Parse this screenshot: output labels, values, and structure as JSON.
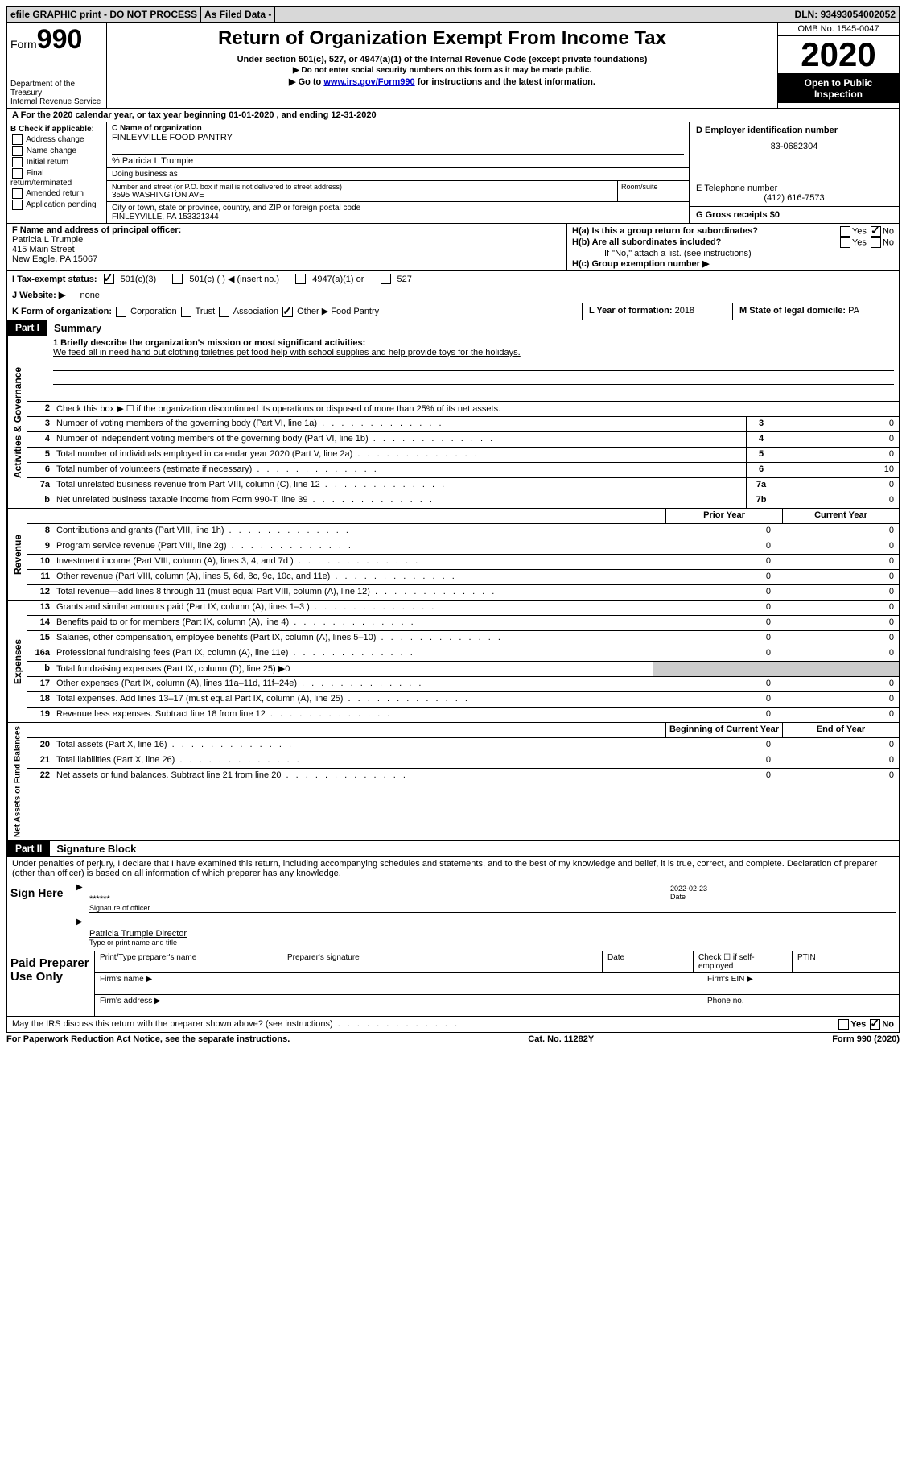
{
  "topbar": {
    "efile": "efile GRAPHIC print - DO NOT PROCESS",
    "asfiled": "As Filed Data -",
    "dln_label": "DLN:",
    "dln": "93493054002052"
  },
  "header": {
    "form_prefix": "Form",
    "form_num": "990",
    "dept1": "Department of the Treasury",
    "dept2": "Internal Revenue Service",
    "title": "Return of Organization Exempt From Income Tax",
    "sub1": "Under section 501(c), 527, or 4947(a)(1) of the Internal Revenue Code (except private foundations)",
    "sub2": "▶ Do not enter social security numbers on this form as it may be made public.",
    "sub3_pre": "▶ Go to ",
    "sub3_link": "www.irs.gov/Form990",
    "sub3_post": " for instructions and the latest information.",
    "omb": "OMB No. 1545-0047",
    "year": "2020",
    "open": "Open to Public Inspection"
  },
  "rowA": "A  For the 2020 calendar year, or tax year beginning 01-01-2020   , and ending 12-31-2020",
  "sectionB": {
    "label": "B Check if applicable:",
    "items": [
      "Address change",
      "Name change",
      "Initial return",
      "Final return/terminated",
      "Amended return",
      "Application pending"
    ]
  },
  "sectionC": {
    "name_label": "C Name of organization",
    "name": "FINLEYVILLE FOOD PANTRY",
    "care_of": "% Patricia L Trumpie",
    "dba_label": "Doing business as",
    "addr_label": "Number and street (or P.O. box if mail is not delivered to street address)",
    "addr": "3595 WASHINGTON AVE",
    "room_label": "Room/suite",
    "city_label": "City or town, state or province, country, and ZIP or foreign postal code",
    "city": "FINLEYVILLE, PA  153321344"
  },
  "sectionD": {
    "ein_label": "D Employer identification number",
    "ein": "83-0682304",
    "phone_label": "E Telephone number",
    "phone": "(412) 616-7573",
    "gross_label": "G Gross receipts $",
    "gross": "0"
  },
  "sectionF": {
    "label": "F  Name and address of principal officer:",
    "line1": "Patricia L Trumpie",
    "line2": "415 Main Street",
    "line3": "New Eagle, PA  15067"
  },
  "sectionH": {
    "ha": "H(a) Is this a group return for subordinates?",
    "hb": "H(b) Are all subordinates included?",
    "hb_note": "If \"No,\" attach a list. (see instructions)",
    "hc": "H(c) Group exemption number ▶",
    "yes": "Yes",
    "no": "No"
  },
  "sectionI": {
    "label": "I  Tax-exempt status:",
    "opts": [
      "501(c)(3)",
      "501(c) (  ) ◀ (insert no.)",
      "4947(a)(1) or",
      "527"
    ]
  },
  "sectionJ": {
    "label": "J  Website: ▶",
    "val": "none"
  },
  "sectionK": {
    "label": "K Form of organization:",
    "opts": [
      "Corporation",
      "Trust",
      "Association",
      "Other ▶"
    ],
    "other": "Food Pantry"
  },
  "sectionL": {
    "label": "L Year of formation:",
    "val": "2018"
  },
  "sectionM": {
    "label": "M State of legal domicile:",
    "val": "PA"
  },
  "part1": {
    "header": "Part I",
    "title": "Summary",
    "line1_label": "1 Briefly describe the organization's mission or most significant activities:",
    "line1_text": "We feed all in need hand out clothing toiletries pet food help with school supplies and help provide toys for the holidays.",
    "line2": "Check this box ▶ ☐ if the organization discontinued its operations or disposed of more than 25% of its net assets.",
    "governance_label": "Activities & Governance",
    "revenue_label": "Revenue",
    "expenses_label": "Expenses",
    "netassets_label": "Net Assets or Fund Balances",
    "prior_year": "Prior Year",
    "current_year": "Current Year",
    "begin_year": "Beginning of Current Year",
    "end_year": "End of Year",
    "gov_lines": [
      {
        "n": "3",
        "d": "Number of voting members of the governing body (Part VI, line 1a)",
        "box": "3",
        "v": "0"
      },
      {
        "n": "4",
        "d": "Number of independent voting members of the governing body (Part VI, line 1b)",
        "box": "4",
        "v": "0"
      },
      {
        "n": "5",
        "d": "Total number of individuals employed in calendar year 2020 (Part V, line 2a)",
        "box": "5",
        "v": "0"
      },
      {
        "n": "6",
        "d": "Total number of volunteers (estimate if necessary)",
        "box": "6",
        "v": "10"
      },
      {
        "n": "7a",
        "d": "Total unrelated business revenue from Part VIII, column (C), line 12",
        "box": "7a",
        "v": "0"
      },
      {
        "n": "b",
        "d": "Net unrelated business taxable income from Form 990-T, line 39",
        "box": "7b",
        "v": "0"
      }
    ],
    "rev_lines": [
      {
        "n": "8",
        "d": "Contributions and grants (Part VIII, line 1h)",
        "p": "0",
        "c": "0"
      },
      {
        "n": "9",
        "d": "Program service revenue (Part VIII, line 2g)",
        "p": "0",
        "c": "0"
      },
      {
        "n": "10",
        "d": "Investment income (Part VIII, column (A), lines 3, 4, and 7d )",
        "p": "0",
        "c": "0"
      },
      {
        "n": "11",
        "d": "Other revenue (Part VIII, column (A), lines 5, 6d, 8c, 9c, 10c, and 11e)",
        "p": "0",
        "c": "0"
      },
      {
        "n": "12",
        "d": "Total revenue—add lines 8 through 11 (must equal Part VIII, column (A), line 12)",
        "p": "0",
        "c": "0"
      }
    ],
    "exp_lines": [
      {
        "n": "13",
        "d": "Grants and similar amounts paid (Part IX, column (A), lines 1–3 )",
        "p": "0",
        "c": "0"
      },
      {
        "n": "14",
        "d": "Benefits paid to or for members (Part IX, column (A), line 4)",
        "p": "0",
        "c": "0"
      },
      {
        "n": "15",
        "d": "Salaries, other compensation, employee benefits (Part IX, column (A), lines 5–10)",
        "p": "0",
        "c": "0"
      },
      {
        "n": "16a",
        "d": "Professional fundraising fees (Part IX, column (A), line 11e)",
        "p": "0",
        "c": "0"
      },
      {
        "n": "b",
        "d": "Total fundraising expenses (Part IX, column (D), line 25) ▶0",
        "p": "",
        "c": "",
        "shade": true
      },
      {
        "n": "17",
        "d": "Other expenses (Part IX, column (A), lines 11a–11d, 11f–24e)",
        "p": "0",
        "c": "0"
      },
      {
        "n": "18",
        "d": "Total expenses. Add lines 13–17 (must equal Part IX, column (A), line 25)",
        "p": "0",
        "c": "0"
      },
      {
        "n": "19",
        "d": "Revenue less expenses. Subtract line 18 from line 12",
        "p": "0",
        "c": "0"
      }
    ],
    "net_lines": [
      {
        "n": "20",
        "d": "Total assets (Part X, line 16)",
        "p": "0",
        "c": "0"
      },
      {
        "n": "21",
        "d": "Total liabilities (Part X, line 26)",
        "p": "0",
        "c": "0"
      },
      {
        "n": "22",
        "d": "Net assets or fund balances. Subtract line 21 from line 20",
        "p": "0",
        "c": "0"
      }
    ]
  },
  "part2": {
    "header": "Part II",
    "title": "Signature Block",
    "declaration": "Under penalties of perjury, I declare that I have examined this return, including accompanying schedules and statements, and to the best of my knowledge and belief, it is true, correct, and complete. Declaration of preparer (other than officer) is based on all information of which preparer has any knowledge.",
    "sign_here": "Sign Here",
    "stars": "******",
    "sig_label": "Signature of officer",
    "date": "2022-02-23",
    "date_label": "Date",
    "name": "Patricia Trumpie  Director",
    "name_label": "Type or print name and title",
    "paid": "Paid Preparer Use Only",
    "prep_name": "Print/Type preparer's name",
    "prep_sig": "Preparer's signature",
    "prep_date": "Date",
    "prep_check": "Check ☐ if self-employed",
    "ptin": "PTIN",
    "firm_name": "Firm's name  ▶",
    "firm_ein": "Firm's EIN ▶",
    "firm_addr": "Firm's address ▶",
    "phone": "Phone no."
  },
  "footer": {
    "q": "May the IRS discuss this return with the preparer shown above? (see instructions)",
    "paperwork": "For Paperwork Reduction Act Notice, see the separate instructions.",
    "cat": "Cat. No. 11282Y",
    "form": "Form 990 (2020)"
  }
}
